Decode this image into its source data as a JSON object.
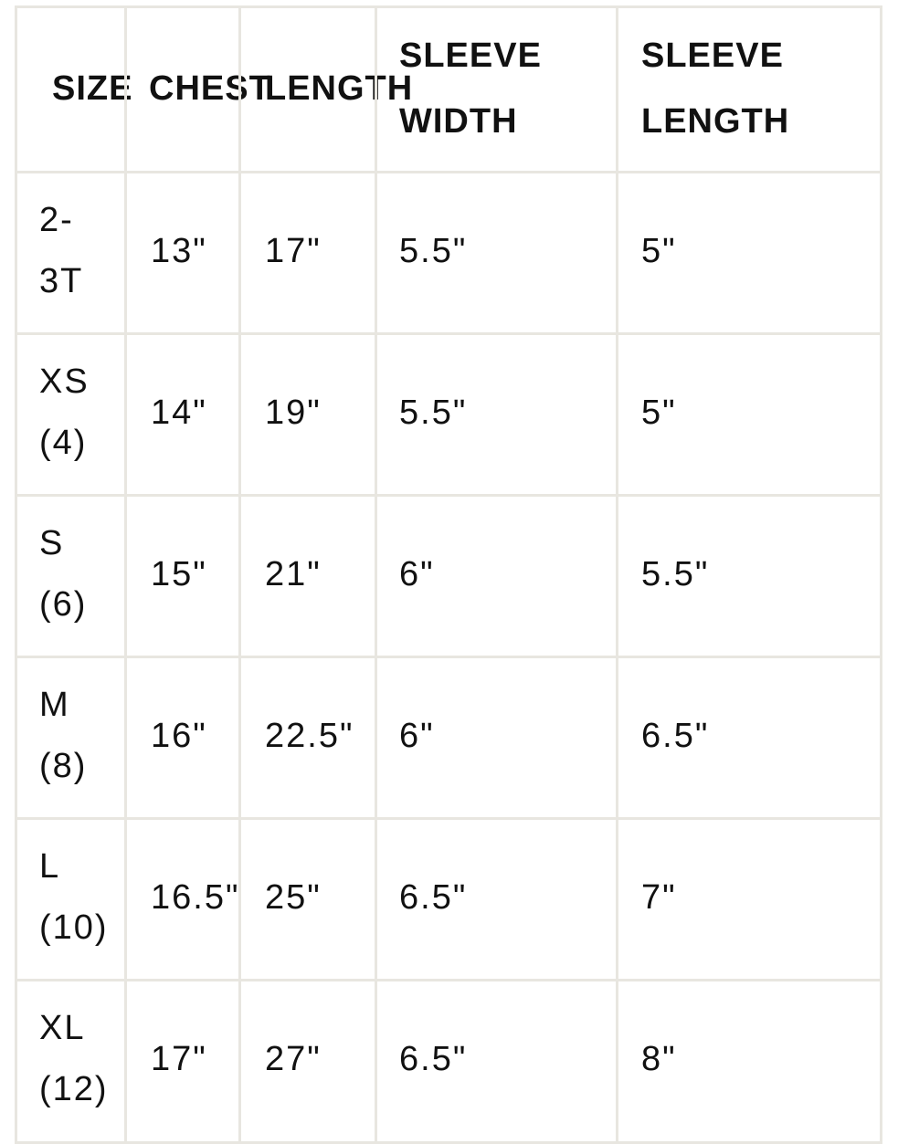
{
  "headers": {
    "size": "SIZE",
    "chest": "CHEST",
    "length": "LENGTH",
    "sleeve_width": [
      "SLEEVE",
      "WIDTH"
    ],
    "sleeve_length": [
      "SLEEVE",
      "LENGTH"
    ]
  },
  "rows": [
    {
      "size": [
        "2-",
        "3T"
      ],
      "chest": "13\"",
      "length": "17\"",
      "sleeve_width": "5.5\"",
      "sleeve_length": "5\""
    },
    {
      "size": [
        "XS",
        "(4)"
      ],
      "chest": "14\"",
      "length": "19\"",
      "sleeve_width": "5.5\"",
      "sleeve_length": "5\""
    },
    {
      "size": [
        "S",
        "(6)"
      ],
      "chest": "15\"",
      "length": "21\"",
      "sleeve_width": "6\"",
      "sleeve_length": "5.5\""
    },
    {
      "size": [
        "M",
        "(8)"
      ],
      "chest": "16\"",
      "length": "22.5\"",
      "sleeve_width": "6\"",
      "sleeve_length": "6.5\""
    },
    {
      "size": [
        "L",
        "(10)"
      ],
      "chest": "16.5\"",
      "length": "25\"",
      "sleeve_width": "6.5\"",
      "sleeve_length": "7\""
    },
    {
      "size": [
        "XL",
        "(12)"
      ],
      "chest": "17\"",
      "length": "27\"",
      "sleeve_width": "6.5\"",
      "sleeve_length": "8\""
    }
  ]
}
